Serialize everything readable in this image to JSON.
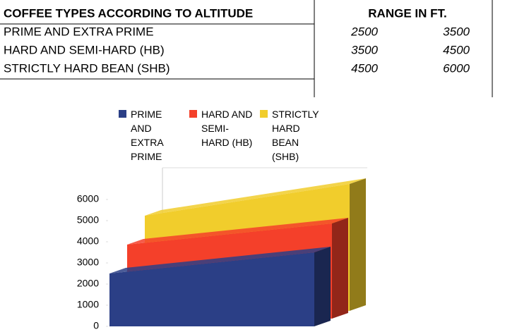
{
  "table": {
    "header": [
      "COFFEE TYPES ACCORDING TO ALTITUDE",
      "RANGE IN FT."
    ],
    "rows": [
      [
        "PRIME AND EXTRA PRIME",
        2500,
        3500
      ],
      [
        "HARD AND SEMI-HARD (HB)",
        3500,
        4500
      ],
      [
        "STRICTLY HARD BEAN (SHB)",
        4500,
        6000
      ]
    ]
  },
  "chart_data": {
    "type": "area3d",
    "categories": [
      null,
      null
    ],
    "series": [
      {
        "name": "PRIME AND EXTRA PRIME",
        "color": "#2b3f86",
        "values": [
          2500,
          3500
        ]
      },
      {
        "name": "HARD AND SEMI-HARD (HB)",
        "color": "#f4402a",
        "values": [
          3500,
          4500
        ]
      },
      {
        "name": "STRICTLY HARD BEAN (SHB)",
        "color": "#f1cd2c",
        "values": [
          4500,
          6000
        ]
      }
    ],
    "ylim": [
      0,
      6000
    ],
    "yticks": [
      0,
      1000,
      2000,
      3000,
      4000,
      5000,
      6000
    ]
  }
}
